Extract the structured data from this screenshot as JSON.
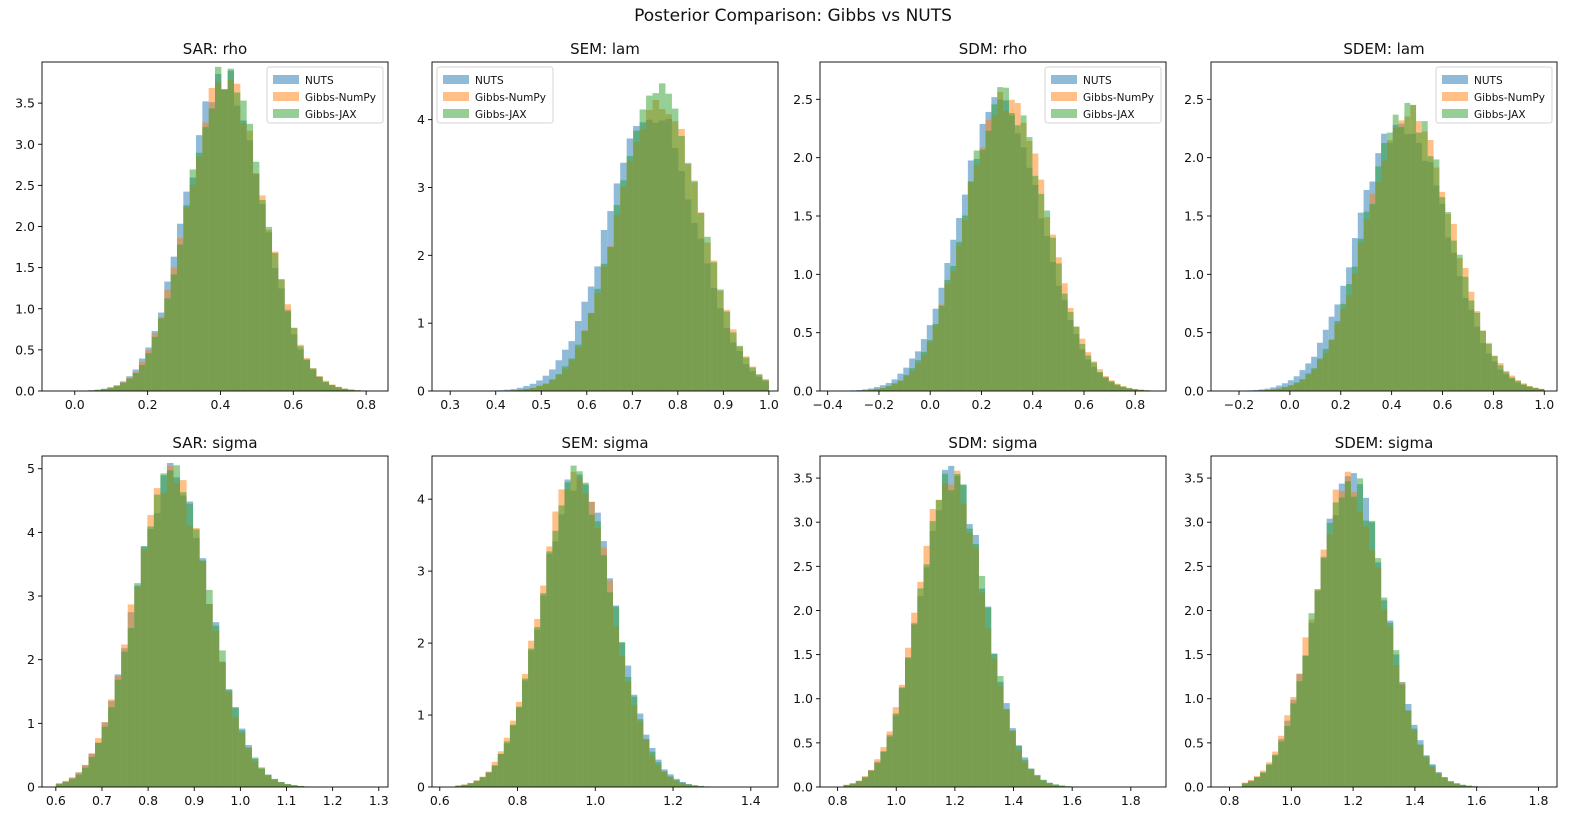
{
  "figure": {
    "title": "Posterior Comparison: Gibbs vs NUTS",
    "colors": {
      "NUTS": "#1f77b4",
      "Gibbs-NumPy": "#ff7f0e",
      "Gibbs-JAX": "#2ca02c"
    },
    "series_names": [
      "NUTS",
      "Gibbs-NumPy",
      "Gibbs-JAX"
    ]
  },
  "chart_data": [
    {
      "type": "histogram",
      "title": "SAR: rho",
      "xlim": [
        -0.09,
        0.86
      ],
      "ylim": [
        0,
        4.0
      ],
      "xticks": [
        0.0,
        0.2,
        0.4,
        0.6,
        0.8
      ],
      "xtick_labels": [
        "0.0",
        "0.2",
        "0.4",
        "0.6",
        "0.8"
      ],
      "yticks": [
        0,
        0.5,
        1,
        1.5,
        2,
        2.5,
        3,
        3.5
      ],
      "ytick_labels": [
        "0.0",
        "0.5",
        "1.0",
        "1.5",
        "2.0",
        "2.5",
        "3.0",
        "3.5"
      ],
      "legend": "upper-right",
      "bin_range": [
        -0.05,
        0.82
      ],
      "bins": 50,
      "dist": [
        {
          "mean": 0.41,
          "sd": 0.105,
          "skew": 0.0
        },
        {
          "mean": 0.415,
          "sd": 0.105,
          "skew": 0.0
        },
        {
          "mean": 0.415,
          "sd": 0.104,
          "skew": 0.0
        }
      ]
    },
    {
      "type": "histogram",
      "title": "SEM: lam",
      "xlim": [
        0.26,
        1.02
      ],
      "ylim": [
        0,
        4.85
      ],
      "xticks": [
        0.3,
        0.4,
        0.5,
        0.6,
        0.7,
        0.8,
        0.9,
        1.0
      ],
      "xtick_labels": [
        "0.3",
        "0.4",
        "0.5",
        "0.6",
        "0.7",
        "0.8",
        "0.9",
        "1.0"
      ],
      "yticks": [
        0,
        1,
        2,
        3,
        4
      ],
      "ytick_labels": [
        "0",
        "1",
        "2",
        "3",
        "4"
      ],
      "legend": "upper-left",
      "bin_range": [
        0.29,
        1.0
      ],
      "bins": 50,
      "dist": [
        {
          "mean": 0.77,
          "sd": 0.1,
          "skew": -0.35
        },
        {
          "mean": 0.785,
          "sd": 0.095,
          "skew": -0.35
        },
        {
          "mean": 0.783,
          "sd": 0.095,
          "skew": -0.35
        }
      ]
    },
    {
      "type": "histogram",
      "title": "SDM: rho",
      "xlim": [
        -0.43,
        0.92
      ],
      "ylim": [
        0,
        2.82
      ],
      "xticks": [
        -0.4,
        -0.2,
        0.0,
        0.2,
        0.4,
        0.6,
        0.8
      ],
      "xtick_labels": [
        "−0.4",
        "−0.2",
        "0.0",
        "0.2",
        "0.4",
        "0.6",
        "0.8"
      ],
      "yticks": [
        0,
        0.5,
        1,
        1.5,
        2,
        2.5
      ],
      "ytick_labels": [
        "0.0",
        "0.5",
        "1.0",
        "1.5",
        "2.0",
        "2.5"
      ],
      "legend": "upper-right",
      "bin_range": [
        -0.38,
        0.88
      ],
      "bins": 55,
      "dist": [
        {
          "mean": 0.29,
          "sd": 0.165,
          "skew": -0.12
        },
        {
          "mean": 0.31,
          "sd": 0.16,
          "skew": -0.1
        },
        {
          "mean": 0.305,
          "sd": 0.16,
          "skew": -0.1
        }
      ]
    },
    {
      "type": "histogram",
      "title": "SDEM: lam",
      "xlim": [
        -0.31,
        1.05
      ],
      "ylim": [
        0,
        2.82
      ],
      "xticks": [
        -0.2,
        0.0,
        0.2,
        0.4,
        0.6,
        0.8,
        1.0
      ],
      "xtick_labels": [
        "−0.2",
        "0.0",
        "0.2",
        "0.4",
        "0.6",
        "0.8",
        "1.0"
      ],
      "yticks": [
        0,
        0.5,
        1,
        1.5,
        2,
        2.5
      ],
      "ytick_labels": [
        "0.0",
        "0.5",
        "1.0",
        "1.5",
        "2.0",
        "2.5"
      ],
      "legend": "upper-right",
      "bin_range": [
        -0.26,
        1.0
      ],
      "bins": 55,
      "dist": [
        {
          "mean": 0.47,
          "sd": 0.175,
          "skew": -0.2
        },
        {
          "mean": 0.495,
          "sd": 0.168,
          "skew": -0.18
        },
        {
          "mean": 0.49,
          "sd": 0.168,
          "skew": -0.18
        }
      ]
    },
    {
      "type": "histogram",
      "title": "SAR: sigma",
      "xlim": [
        0.57,
        1.32
      ],
      "ylim": [
        0,
        5.2
      ],
      "xticks": [
        0.6,
        0.7,
        0.8,
        0.9,
        1.0,
        1.1,
        1.2,
        1.3
      ],
      "xtick_labels": [
        "0.6",
        "0.7",
        "0.8",
        "0.9",
        "1.0",
        "1.1",
        "1.2",
        "1.3"
      ],
      "yticks": [
        0,
        1,
        2,
        3,
        4,
        5
      ],
      "ytick_labels": [
        "0",
        "1",
        "2",
        "3",
        "4",
        "5"
      ],
      "legend": "none",
      "bin_range": [
        0.6,
        1.28
      ],
      "bins": 48,
      "dist": [
        {
          "mean": 0.83,
          "sd": 0.085,
          "skew": 0.35
        },
        {
          "mean": 0.828,
          "sd": 0.085,
          "skew": 0.35
        },
        {
          "mean": 0.832,
          "sd": 0.084,
          "skew": 0.35
        }
      ]
    },
    {
      "type": "histogram",
      "title": "SEM: sigma",
      "xlim": [
        0.58,
        1.47
      ],
      "ylim": [
        0,
        4.6
      ],
      "xticks": [
        0.6,
        0.8,
        1.0,
        1.2,
        1.4
      ],
      "xtick_labels": [
        "0.6",
        "0.8",
        "1.0",
        "1.2",
        "1.4"
      ],
      "yticks": [
        0,
        1,
        2,
        3,
        4
      ],
      "ytick_labels": [
        "0",
        "1",
        "2",
        "3",
        "4"
      ],
      "legend": "none",
      "bin_range": [
        0.64,
        1.42
      ],
      "bins": 50,
      "dist": [
        {
          "mean": 0.93,
          "sd": 0.097,
          "skew": 0.35
        },
        {
          "mean": 0.925,
          "sd": 0.096,
          "skew": 0.35
        },
        {
          "mean": 0.928,
          "sd": 0.096,
          "skew": 0.35
        }
      ]
    },
    {
      "type": "histogram",
      "title": "SDM: sigma",
      "xlim": [
        0.74,
        1.92
      ],
      "ylim": [
        0,
        3.75
      ],
      "xticks": [
        0.8,
        1.0,
        1.2,
        1.4,
        1.6,
        1.8
      ],
      "xtick_labels": [
        "0.8",
        "1.0",
        "1.2",
        "1.4",
        "1.6",
        "1.8"
      ],
      "yticks": [
        0,
        0.5,
        1,
        1.5,
        2,
        2.5,
        3,
        3.5
      ],
      "ytick_labels": [
        "0.0",
        "0.5",
        "1.0",
        "1.5",
        "2.0",
        "2.5",
        "3.0",
        "3.5"
      ],
      "legend": "none",
      "bin_range": [
        0.82,
        1.87
      ],
      "bins": 50,
      "dist": [
        {
          "mean": 1.16,
          "sd": 0.118,
          "skew": 0.35
        },
        {
          "mean": 1.155,
          "sd": 0.117,
          "skew": 0.35
        },
        {
          "mean": 1.16,
          "sd": 0.117,
          "skew": 0.35
        }
      ]
    },
    {
      "type": "histogram",
      "title": "SDEM: sigma",
      "xlim": [
        0.74,
        1.86
      ],
      "ylim": [
        0,
        3.75
      ],
      "xticks": [
        0.8,
        1.0,
        1.2,
        1.4,
        1.6,
        1.8
      ],
      "xtick_labels": [
        "0.8",
        "1.0",
        "1.2",
        "1.4",
        "1.6",
        "1.8"
      ],
      "yticks": [
        0,
        0.5,
        1,
        1.5,
        2,
        2.5,
        3,
        3.5
      ],
      "ytick_labels": [
        "0.0",
        "0.5",
        "1.0",
        "1.5",
        "2.0",
        "2.5",
        "3.0",
        "3.5"
      ],
      "legend": "none",
      "bin_range": [
        0.84,
        1.82
      ],
      "bins": 50,
      "dist": [
        {
          "mean": 1.16,
          "sd": 0.12,
          "skew": 0.35
        },
        {
          "mean": 1.155,
          "sd": 0.12,
          "skew": 0.35
        },
        {
          "mean": 1.16,
          "sd": 0.119,
          "skew": 0.35
        }
      ]
    }
  ]
}
